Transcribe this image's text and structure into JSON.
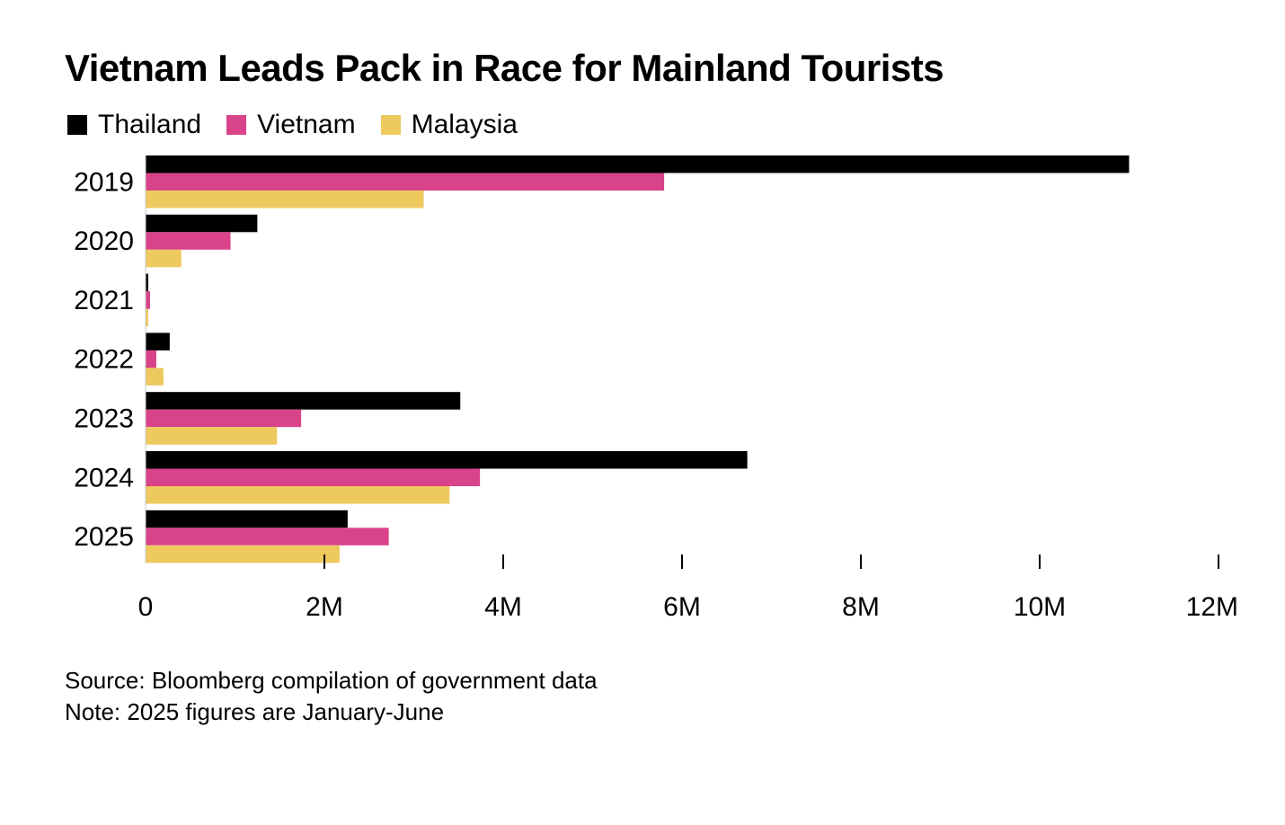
{
  "chart_data": {
    "type": "bar",
    "orientation": "horizontal",
    "title": "Vietnam Leads Pack in Race for Mainland Tourists",
    "categories": [
      "2019",
      "2020",
      "2021",
      "2022",
      "2023",
      "2024",
      "2025"
    ],
    "series": [
      {
        "name": "Thailand",
        "color": "#000000",
        "values": [
          11.0,
          1.25,
          0.03,
          0.27,
          3.52,
          6.73,
          2.26
        ]
      },
      {
        "name": "Vietnam",
        "color": "#d9438a",
        "values": [
          5.8,
          0.95,
          0.05,
          0.12,
          1.74,
          3.74,
          2.72
        ]
      },
      {
        "name": "Malaysia",
        "color": "#eec95e",
        "values": [
          3.11,
          0.4,
          0.03,
          0.2,
          1.47,
          3.4,
          2.17
        ]
      }
    ],
    "xlim": [
      0,
      12
    ],
    "x_unit": "millions",
    "x_ticks": [
      0,
      2,
      4,
      6,
      8,
      10,
      12
    ],
    "x_tick_labels": [
      "0",
      "2M",
      "4M",
      "6M",
      "8M",
      "10M",
      "12M"
    ],
    "legend_position": "top-left"
  },
  "footer": {
    "source": "Source: Bloomberg compilation of government data",
    "note": "Note: 2025 figures are January-June"
  }
}
